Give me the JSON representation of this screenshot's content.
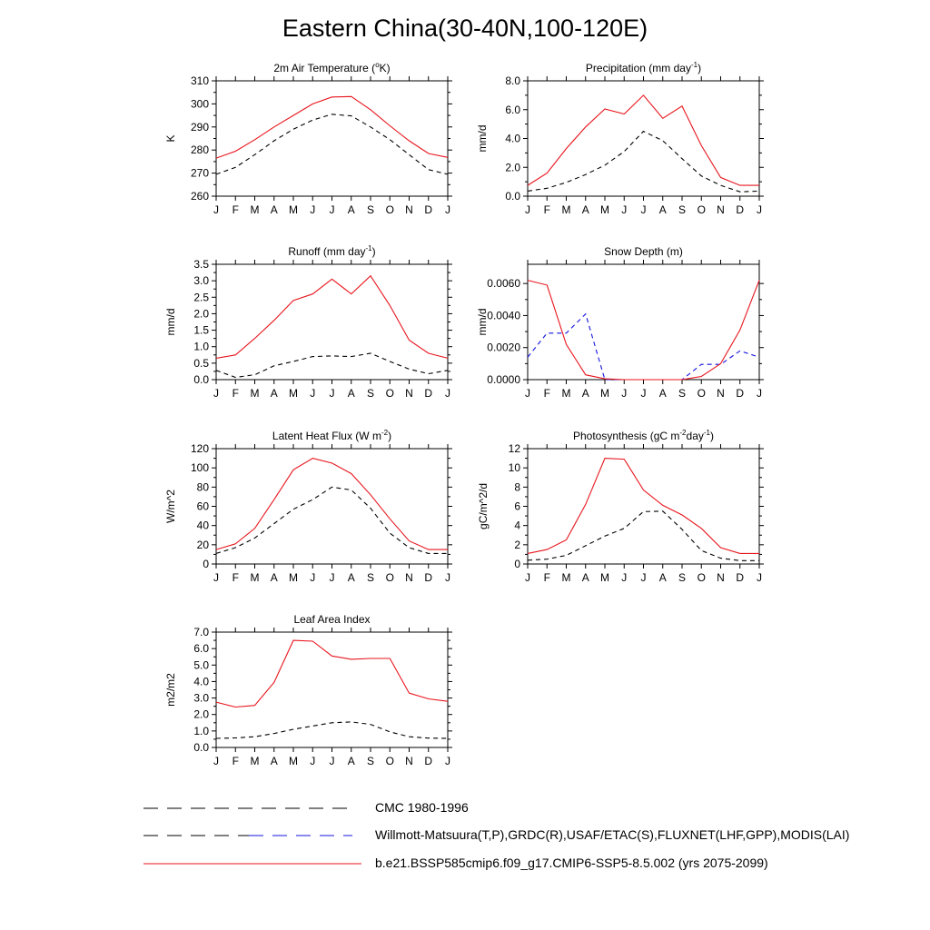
{
  "title": "Eastern China(30-40N,100-120E)",
  "months": [
    "J",
    "F",
    "M",
    "A",
    "M",
    "J",
    "J",
    "A",
    "S",
    "O",
    "N",
    "D",
    "J"
  ],
  "colors": {
    "model": "#e8141c",
    "obs": "#000000",
    "snow_obs": "#1414e0"
  },
  "legend": [
    {
      "label": "CMC 1980-1996",
      "style": "dash-black"
    },
    {
      "label": "Willmott-Matsuura(T,P),GRDC(R),USAF/ETAC(S),FLUXNET(LHF,GPP),MODIS(LAI)",
      "style": "dash-black-blue"
    },
    {
      "label": "b.e21.BSSP585cmip6.f09_g17.CMIP6-SSP5-8.5.002 (yrs 2075-2099)",
      "style": "solid-red"
    }
  ],
  "chart_data": [
    {
      "type": "line",
      "title": "2m Air Temperature (°K)",
      "ylabel": "K",
      "ylim": [
        260,
        310
      ],
      "yticks": [
        "260",
        "270",
        "280",
        "290",
        "300",
        "310"
      ],
      "ytick_values": [
        260,
        270,
        280,
        290,
        300,
        310
      ],
      "x": [
        "J",
        "F",
        "M",
        "A",
        "M",
        "J",
        "J",
        "A",
        "S",
        "O",
        "N",
        "D",
        "J"
      ],
      "series": [
        {
          "name": "b.e21.BSSP585cmip6.f09_g17.CMIP6-SSP5-8.5.002 (yrs 2075-2099)",
          "style": "solid-red",
          "values": [
            276.5,
            279.5,
            284.5,
            290.0,
            295.0,
            300.0,
            303.0,
            303.2,
            297.5,
            290.5,
            284.0,
            278.5,
            276.8
          ]
        },
        {
          "name": "Willmott-Matsuura(T,P),GRDC(R),USAF/ETAC(S),FLUXNET(LHF,GPP),MODIS(LAI)",
          "style": "dash-black",
          "values": [
            269.5,
            272.5,
            278.0,
            284.0,
            289.0,
            293.0,
            295.5,
            294.8,
            290.0,
            284.5,
            278.0,
            271.5,
            269.5
          ]
        }
      ]
    },
    {
      "type": "line",
      "title": "Precipitation (mm day-1)",
      "ylabel": "mm/d",
      "ylim": [
        0,
        8
      ],
      "yticks": [
        "0.0",
        "2.0",
        "4.0",
        "6.0",
        "8.0"
      ],
      "ytick_values": [
        0,
        2,
        4,
        6,
        8
      ],
      "x": [
        "J",
        "F",
        "M",
        "A",
        "M",
        "J",
        "J",
        "A",
        "S",
        "O",
        "N",
        "D",
        "J"
      ],
      "series": [
        {
          "name": "b.e21.BSSP585cmip6.f09_g17.CMIP6-SSP5-8.5.002 (yrs 2075-2099)",
          "style": "solid-red",
          "values": [
            0.75,
            1.6,
            3.3,
            4.8,
            6.05,
            5.7,
            7.0,
            5.4,
            6.25,
            3.5,
            1.3,
            0.75,
            0.75
          ]
        },
        {
          "name": "Willmott-Matsuura(T,P),GRDC(R),USAF/ETAC(S),FLUXNET(LHF,GPP),MODIS(LAI)",
          "style": "dash-black",
          "values": [
            0.35,
            0.55,
            0.95,
            1.5,
            2.15,
            3.1,
            4.5,
            3.85,
            2.6,
            1.4,
            0.75,
            0.3,
            0.35
          ]
        }
      ]
    },
    {
      "type": "line",
      "title": "Runoff (mm day-1)",
      "ylabel": "mm/d",
      "ylim": [
        0,
        3.5
      ],
      "yticks": [
        "0.0",
        "0.5",
        "1.0",
        "1.5",
        "2.0",
        "2.5",
        "3.0",
        "3.5"
      ],
      "ytick_values": [
        0,
        0.5,
        1.0,
        1.5,
        2.0,
        2.5,
        3.0,
        3.5
      ],
      "x": [
        "J",
        "F",
        "M",
        "A",
        "M",
        "J",
        "J",
        "A",
        "S",
        "O",
        "N",
        "D",
        "J"
      ],
      "series": [
        {
          "name": "b.e21.BSSP585cmip6.f09_g17.CMIP6-SSP5-8.5.002 (yrs 2075-2099)",
          "style": "solid-red",
          "values": [
            0.65,
            0.75,
            1.25,
            1.8,
            2.4,
            2.6,
            3.05,
            2.6,
            3.15,
            2.25,
            1.2,
            0.8,
            0.65
          ]
        },
        {
          "name": "Willmott-Matsuura(T,P),GRDC(R),USAF/ETAC(S),FLUXNET(LHF,GPP),MODIS(LAI)",
          "style": "dash-black",
          "values": [
            0.28,
            0.07,
            0.15,
            0.42,
            0.55,
            0.7,
            0.72,
            0.7,
            0.8,
            0.55,
            0.32,
            0.18,
            0.28
          ]
        }
      ]
    },
    {
      "type": "line",
      "title": "Snow Depth (m)",
      "ylabel": "mm/d",
      "ylim": [
        0,
        0.0072
      ],
      "yticks": [
        "0.0000",
        "0.0020",
        "0.0040",
        "0.0060"
      ],
      "ytick_values": [
        0,
        0.002,
        0.004,
        0.006
      ],
      "x": [
        "J",
        "F",
        "M",
        "A",
        "M",
        "J",
        "J",
        "A",
        "S",
        "O",
        "N",
        "D",
        "J"
      ],
      "series": [
        {
          "name": "b.e21.BSSP585cmip6.f09_g17.CMIP6-SSP5-8.5.002 (yrs 2075-2099)",
          "style": "solid-red",
          "values": [
            0.0062,
            0.0059,
            0.0022,
            0.0003,
            5e-05,
            0.0,
            0.0,
            0.0,
            0.0,
            0.0002,
            0.001,
            0.0031,
            0.0062
          ]
        },
        {
          "name": "CMC 1980-1996",
          "style": "dash-blue",
          "values": [
            0.0014,
            0.0029,
            0.0029,
            0.0041,
            0.0,
            0.0,
            0.0,
            0.0,
            0.0,
            0.00095,
            0.00095,
            0.0018,
            0.0014
          ]
        },
        {
          "name": "Willmott-Matsuura(T,P),GRDC(R),USAF/ETAC(S),FLUXNET(LHF,GPP),MODIS(LAI)",
          "style": "dash-black",
          "values": [
            0.0,
            0.0,
            0.0,
            0.0,
            0.0,
            0.0,
            0.0,
            0.0,
            0.0,
            0.0,
            0.0,
            0.0,
            0.0
          ]
        }
      ]
    },
    {
      "type": "line",
      "title": "Latent Heat Flux (W m-2)",
      "ylabel": "W/m^2",
      "ylim": [
        0,
        120
      ],
      "yticks": [
        "0",
        "20",
        "40",
        "60",
        "80",
        "100",
        "120"
      ],
      "ytick_values": [
        0,
        20,
        40,
        60,
        80,
        100,
        120
      ],
      "x": [
        "J",
        "F",
        "M",
        "A",
        "M",
        "J",
        "J",
        "A",
        "S",
        "O",
        "N",
        "D",
        "J"
      ],
      "series": [
        {
          "name": "b.e21.BSSP585cmip6.f09_g17.CMIP6-SSP5-8.5.002 (yrs 2075-2099)",
          "style": "solid-red",
          "values": [
            15,
            21,
            37,
            67,
            98,
            110,
            105,
            94,
            72,
            47,
            24,
            15,
            15
          ]
        },
        {
          "name": "Willmott-Matsuura(T,P),GRDC(R),USAF/ETAC(S),FLUXNET(LHF,GPP),MODIS(LAI)",
          "style": "dash-black",
          "values": [
            11,
            17,
            27,
            42,
            57,
            67,
            80,
            77,
            58,
            32,
            17,
            11,
            11
          ]
        }
      ]
    },
    {
      "type": "line",
      "title": "Photosynthesis (gC m-2day-1)",
      "ylabel": "gC/m^2/d",
      "ylim": [
        0,
        12
      ],
      "yticks": [
        "0",
        "2",
        "4",
        "6",
        "8",
        "10",
        "12"
      ],
      "ytick_values": [
        0,
        2,
        4,
        6,
        8,
        10,
        12
      ],
      "x": [
        "J",
        "F",
        "M",
        "A",
        "M",
        "J",
        "J",
        "A",
        "S",
        "O",
        "N",
        "D",
        "J"
      ],
      "series": [
        {
          "name": "b.e21.BSSP585cmip6.f09_g17.CMIP6-SSP5-8.5.002 (yrs 2075-2099)",
          "style": "solid-red",
          "values": [
            1.1,
            1.5,
            2.5,
            6.2,
            11.0,
            10.9,
            7.7,
            6.1,
            5.1,
            3.7,
            1.7,
            1.1,
            1.1
          ]
        },
        {
          "name": "Willmott-Matsuura(T,P),GRDC(R),USAF/ETAC(S),FLUXNET(LHF,GPP),MODIS(LAI)",
          "style": "dash-black",
          "values": [
            0.4,
            0.5,
            0.9,
            1.9,
            2.9,
            3.7,
            5.45,
            5.5,
            3.6,
            1.4,
            0.6,
            0.35,
            0.35
          ]
        }
      ]
    },
    {
      "type": "line",
      "title": "Leaf Area Index",
      "ylabel": "m2/m2",
      "ylim": [
        0,
        7
      ],
      "yticks": [
        "0.0",
        "1.0",
        "2.0",
        "3.0",
        "4.0",
        "5.0",
        "6.0",
        "7.0"
      ],
      "ytick_values": [
        0,
        1,
        2,
        3,
        4,
        5,
        6,
        7
      ],
      "x": [
        "J",
        "F",
        "M",
        "A",
        "M",
        "J",
        "J",
        "A",
        "S",
        "O",
        "N",
        "D",
        "J"
      ],
      "series": [
        {
          "name": "b.e21.BSSP585cmip6.f09_g17.CMIP6-SSP5-8.5.002 (yrs 2075-2099)",
          "style": "solid-red",
          "values": [
            2.75,
            2.45,
            2.55,
            3.95,
            6.5,
            6.45,
            5.55,
            5.35,
            5.4,
            5.4,
            3.3,
            2.95,
            2.8
          ]
        },
        {
          "name": "Willmott-Matsuura(T,P),GRDC(R),USAF/ETAC(S),FLUXNET(LHF,GPP),MODIS(LAI)",
          "style": "dash-black",
          "values": [
            0.55,
            0.58,
            0.65,
            0.85,
            1.1,
            1.3,
            1.5,
            1.55,
            1.4,
            0.95,
            0.65,
            0.57,
            0.55
          ]
        }
      ]
    }
  ]
}
